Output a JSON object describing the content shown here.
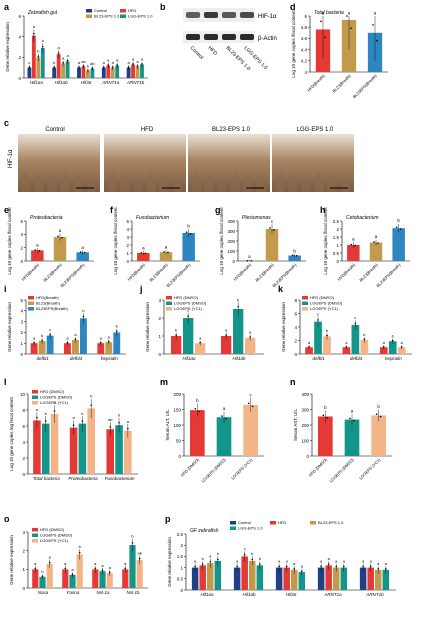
{
  "colors": {
    "control": "#1f3f86",
    "hfd": "#e53935",
    "bl": "#c19a4c",
    "lgg": "#2e86c1",
    "teal": "#13958a",
    "peach": "#f3b487",
    "pink": "#f08e8e",
    "lightblue": "#7fb3e0"
  },
  "panel_letters": {
    "a": "a",
    "b": "b",
    "c": "c",
    "d": "d",
    "e": "e",
    "f": "f",
    "g": "g",
    "h": "h",
    "i": "i",
    "j": "j",
    "k": "k",
    "l": "l",
    "m": "m",
    "n": "n",
    "o": "o",
    "p": "p"
  },
  "panel_b": {
    "bands": [
      "HIF-1α",
      "β-Actin"
    ],
    "lanes": [
      "Control",
      "HFD",
      "BL23-EPS 1.0",
      "LGG-EPS 1.0"
    ],
    "band_intensity": [
      0.55,
      0.85,
      0.6,
      0.7
    ]
  },
  "panel_c": {
    "ylabel": "HIF-1α",
    "images": [
      "Control",
      "HFD",
      "BL23-EPS 1.0",
      "LGG-EPS 1.0"
    ]
  },
  "chart_data": [
    {
      "panel": "a",
      "type": "bar",
      "title": "Zebrafish gut",
      "ylabel": "Gene relative expression",
      "categories": [
        "Hif1αa",
        "Hif1αb",
        "Hif3α",
        "ARNT1a",
        "ARNT1b"
      ],
      "ylim": [
        0,
        6
      ],
      "yticks": [
        0,
        2,
        4,
        6
      ],
      "legend": [
        "Control",
        "HFD",
        "BL23-EPS 1.0",
        "LGG-EPS 1.0"
      ],
      "series": [
        {
          "name": "Control",
          "values": [
            1.0,
            1.0,
            1.0,
            1.0,
            1.0
          ],
          "color_key": "control"
        },
        {
          "name": "HFD",
          "values": [
            4.1,
            2.3,
            1.1,
            1.2,
            1.3
          ],
          "color_key": "hfd"
        },
        {
          "name": "BL23-EPS 1.0",
          "values": [
            2.0,
            1.4,
            0.7,
            1.0,
            1.1
          ],
          "color_key": "bl"
        },
        {
          "name": "LGG-EPS 1.0",
          "values": [
            2.9,
            1.6,
            0.9,
            1.2,
            1.3
          ],
          "color_key": "teal"
        }
      ],
      "letters": [
        [
          "c",
          "a",
          "b",
          "b"
        ],
        [
          "b",
          "a",
          "a",
          "a"
        ],
        [
          "a",
          "ab",
          "b",
          "ab"
        ],
        [
          "a",
          "a",
          "a",
          "a"
        ],
        [
          "a",
          "a",
          "a",
          "a"
        ]
      ]
    },
    {
      "panel": "d",
      "type": "bar",
      "title": "Total bacteria",
      "ylabel": "Log 10 gene copies /fecal content",
      "categories": [
        "HFD(Breath)",
        "BL23(Breath)",
        "BL23EPS(Breath)"
      ],
      "ylim": [
        4.0,
        5.0
      ],
      "yticks": [
        4.0,
        4.2,
        4.4,
        4.6,
        4.8,
        5.0
      ],
      "values": [
        4.76,
        4.93,
        4.7
      ],
      "color_keys": [
        "hfd",
        "bl",
        "lgg"
      ],
      "letters": [
        "a",
        "a",
        "a"
      ]
    },
    {
      "panel": "e",
      "type": "bar",
      "title": "Proteobacteria",
      "ylabel": "Log 10 gene copies /fecal content",
      "categories": [
        "HFD(Breath)",
        "BL23(Breath)",
        "BL23EPS(Breath)"
      ],
      "ylim": [
        0,
        6
      ],
      "yticks": [
        0,
        2,
        4,
        6
      ],
      "values": [
        1.6,
        3.6,
        1.3
      ],
      "color_keys": [
        "hfd",
        "bl",
        "lgg"
      ],
      "letters": [
        "a",
        "a",
        "a"
      ]
    },
    {
      "panel": "f",
      "type": "bar",
      "title": "Fusobacterium",
      "ylabel": "Log 10 gene copies /fecal content",
      "categories": [
        "HFD(Breath)",
        "BL23(Breath)",
        "BL23EPS(Breath)"
      ],
      "ylim": [
        0,
        5
      ],
      "yticks": [
        0,
        1,
        2,
        3,
        4,
        5
      ],
      "values": [
        1.0,
        1.1,
        3.5
      ],
      "color_keys": [
        "hfd",
        "bl",
        "lgg"
      ],
      "letters": [
        "a",
        "a",
        "b"
      ]
    },
    {
      "panel": "g",
      "type": "bar",
      "title": "Plesiomonas",
      "ylabel": "Log 10 gene copies /fecal content",
      "categories": [
        "HFD(Breath)",
        "BL23(Breath)",
        "BL23EPS(Breath)"
      ],
      "ylim": [
        0,
        400
      ],
      "yticks": [
        0,
        100,
        200,
        300,
        400
      ],
      "values": [
        2,
        320,
        55
      ],
      "color_keys": [
        "hfd",
        "bl",
        "lgg"
      ],
      "letters": [
        "a",
        "c",
        "b"
      ]
    },
    {
      "panel": "h",
      "type": "bar",
      "title": "Cetobacterium",
      "ylabel": "Log 10 gene copies /fecal content",
      "categories": [
        "HFD(Breath)",
        "BL23(Breath)",
        "BL23EPS(Breath)"
      ],
      "ylim": [
        0,
        2.5
      ],
      "yticks": [
        0,
        0.5,
        1.0,
        1.5,
        2.0,
        2.5
      ],
      "values": [
        1.0,
        1.15,
        2.05
      ],
      "color_keys": [
        "hfd",
        "bl",
        "lgg"
      ],
      "letters": [
        "a",
        "a",
        "b"
      ]
    },
    {
      "panel": "i",
      "type": "bar",
      "ylabel": "Gene relative expression",
      "categories": [
        "defbl1",
        "defbl3",
        "hepcidin"
      ],
      "ylim": [
        0,
        5
      ],
      "yticks": [
        0,
        1,
        2,
        3,
        4,
        5
      ],
      "legend": [
        "HFD(Breath)",
        "BL23(Breath)",
        "BL23EPS(Breath)"
      ],
      "series": [
        {
          "name": "HFD(Breath)",
          "values": [
            1.0,
            1.0,
            1.0
          ],
          "color_key": "hfd"
        },
        {
          "name": "BL23(Breath)",
          "values": [
            1.2,
            1.3,
            1.1
          ],
          "color_key": "bl"
        },
        {
          "name": "BL23EPS(Breath)",
          "values": [
            1.7,
            3.3,
            2.0
          ],
          "color_key": "lgg"
        }
      ],
      "letters": [
        [
          "a",
          "b",
          "c"
        ],
        [
          "a",
          "a",
          "b"
        ],
        [
          "a",
          "a",
          "b"
        ]
      ]
    },
    {
      "panel": "j",
      "type": "bar",
      "ylabel": "Gene relative expression",
      "categories": [
        "Hif1αa",
        "Hif1αb"
      ],
      "ylim": [
        0,
        3
      ],
      "yticks": [
        0,
        1,
        2,
        3
      ],
      "legend": [
        "HFD (DMSO)",
        "LGGEPS (DMSO)",
        "LGGEPS (YC1)"
      ],
      "series": [
        {
          "name": "HFD (DMSO)",
          "values": [
            1.0,
            1.0
          ],
          "color_key": "hfd"
        },
        {
          "name": "LGGEPS (DMSO)",
          "values": [
            2.0,
            2.5
          ],
          "color_key": "teal"
        },
        {
          "name": "LGGEPS (YC1)",
          "values": [
            0.6,
            0.9
          ],
          "color_key": "peach"
        }
      ],
      "letters": [
        [
          "b",
          "c",
          "a"
        ],
        [
          "a",
          "b",
          "a"
        ]
      ]
    },
    {
      "panel": "k",
      "type": "bar",
      "ylabel": "Gene relative expression",
      "categories": [
        "defbl1",
        "defbl3",
        "hepcidin"
      ],
      "ylim": [
        0,
        8
      ],
      "yticks": [
        0,
        2,
        4,
        6,
        8
      ],
      "legend": [
        "HFD (DMSO)",
        "LGGEPS (DMSO)",
        "LGGEPS (YC1)"
      ],
      "series": [
        {
          "name": "HFD (DMSO)",
          "values": [
            1.0,
            1.0,
            1.0
          ],
          "color_key": "hfd"
        },
        {
          "name": "LGGEPS (DMSO)",
          "values": [
            4.8,
            4.3,
            1.9
          ],
          "color_key": "teal"
        },
        {
          "name": "LGGEPS (YC1)",
          "values": [
            2.6,
            2.1,
            1.0
          ],
          "color_key": "peach"
        }
      ],
      "letters": [
        [
          "a",
          "c",
          "b"
        ],
        [
          "a",
          "c",
          "b"
        ],
        [
          "a",
          "b",
          "a"
        ]
      ]
    },
    {
      "panel": "l",
      "type": "bar",
      "ylabel": "Log 10 gene copies /ng fecal content",
      "categories": [
        "Total bacteria",
        "Proteobacteria",
        "Fusobacterium"
      ],
      "ylim": [
        0,
        10
      ],
      "yticks": [
        0,
        2,
        4,
        6,
        8,
        10
      ],
      "legend": [
        "HFD (DMSO)",
        "LGGEPS (DMSO)",
        "LGGEPS (YC1)"
      ],
      "series": [
        {
          "name": "HFD (DMSO)",
          "values": [
            6.7,
            5.8,
            5.6
          ],
          "color_key": "hfd"
        },
        {
          "name": "LGGEPS (DMSO)",
          "values": [
            6.3,
            6.3,
            6.1
          ],
          "color_key": "teal"
        },
        {
          "name": "LGGEPS (YC1)",
          "values": [
            7.5,
            8.2,
            5.4
          ],
          "color_key": "peach"
        }
      ],
      "letters": [
        [
          "a",
          "b",
          "c"
        ],
        [
          "a",
          "b",
          "b"
        ],
        [
          "ab",
          "b",
          "a"
        ]
      ]
    },
    {
      "panel": "m",
      "type": "bar",
      "ylabel": "Serum ALT, U/L",
      "categories": [
        "HFD (DMSO)",
        "LGGEPS (DMSO)",
        "LGGEPS (YC1)"
      ],
      "ylim": [
        0,
        200
      ],
      "yticks": [
        0,
        50,
        100,
        150,
        200
      ],
      "values": [
        148,
        125,
        165
      ],
      "color_keys": [
        "hfd",
        "teal",
        "peach"
      ],
      "letters": [
        "b",
        "a",
        "c"
      ]
    },
    {
      "panel": "n",
      "type": "bar",
      "ylabel": "Serum AST, U/L",
      "categories": [
        "HFD (DMSO)",
        "LGGEPS (DMSO)",
        "LGGEPS (YC1)"
      ],
      "ylim": [
        0,
        400
      ],
      "yticks": [
        0,
        100,
        200,
        300,
        400
      ],
      "values": [
        255,
        235,
        262
      ],
      "color_keys": [
        "hfd",
        "teal",
        "peach"
      ],
      "letters": [
        "b",
        "a",
        "b"
      ]
    },
    {
      "panel": "o",
      "type": "bar",
      "ylabel": "Gene relative expression",
      "categories": [
        "Nasa",
        "Fasna",
        "Nsl-1a",
        "Nsl-1b"
      ],
      "ylim": [
        0,
        3
      ],
      "yticks": [
        0,
        1,
        2,
        3
      ],
      "legend": [
        "HFD (DMSO)",
        "LGGEPS (DMSO)",
        "LGGEPS (YC1)"
      ],
      "series": [
        {
          "name": "HFD (DMSO)",
          "values": [
            1.0,
            1.0,
            1.0,
            1.0
          ],
          "color_key": "hfd"
        },
        {
          "name": "LGGEPS (DMSO)",
          "values": [
            0.6,
            0.7,
            0.9,
            2.3
          ],
          "color_key": "teal"
        },
        {
          "name": "LGGEPS (YC1)",
          "values": [
            1.3,
            1.8,
            0.8,
            1.5
          ],
          "color_key": "peach"
        }
      ],
      "letters": [
        [
          "a",
          "b",
          "a"
        ],
        [
          "a",
          "a",
          "b"
        ],
        [
          "a",
          "a",
          "a"
        ],
        [
          "a",
          "b",
          "ab"
        ]
      ]
    },
    {
      "panel": "p",
      "type": "bar",
      "title": "GF zebrafish",
      "ylabel": "Gene relative expression",
      "categories": [
        "Hif1αa",
        "Hif1αb",
        "Hif3α",
        "ARNT1a",
        "ARNT1b"
      ],
      "ylim": [
        0,
        2.5
      ],
      "yticks": [
        0,
        0.5,
        1.0,
        1.5,
        2.0,
        2.5
      ],
      "legend": [
        "Control",
        "HFD",
        "BL23-EPS 1.0",
        "LGG-EPS 1.0"
      ],
      "series": [
        {
          "name": "Control",
          "values": [
            1.0,
            1.0,
            1.0,
            1.0,
            1.0
          ],
          "color_key": "control"
        },
        {
          "name": "HFD",
          "values": [
            1.1,
            1.5,
            1.0,
            1.1,
            1.0
          ],
          "color_key": "hfd"
        },
        {
          "name": "BL23-EPS 1.0",
          "values": [
            1.2,
            1.3,
            0.9,
            1.0,
            0.9
          ],
          "color_key": "bl"
        },
        {
          "name": "LGG-EPS 1.0",
          "values": [
            1.3,
            1.1,
            0.8,
            1.0,
            0.9
          ],
          "color_key": "teal"
        }
      ],
      "letters": [
        [
          "a",
          "b",
          "a",
          "b"
        ],
        [
          "a",
          "c",
          "b",
          "b"
        ],
        [
          "a",
          "a",
          "a",
          "a"
        ],
        [
          "a",
          "a",
          "a",
          "a"
        ],
        [
          "a",
          "a",
          "a",
          "a"
        ]
      ]
    }
  ]
}
